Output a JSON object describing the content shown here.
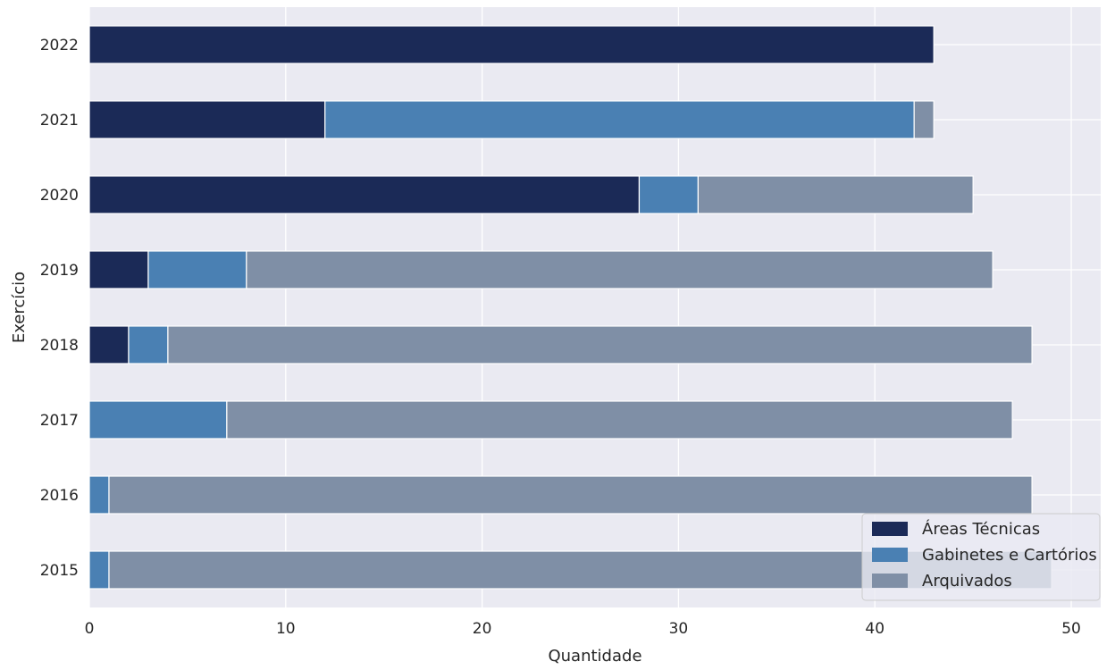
{
  "chart_data": {
    "type": "bar",
    "orientation": "horizontal",
    "stacked": true,
    "xlabel": "Quantidade",
    "ylabel": "Exercício",
    "categories": [
      "2015",
      "2016",
      "2017",
      "2018",
      "2019",
      "2020",
      "2021",
      "2022"
    ],
    "series": [
      {
        "name": "Áreas Técnicas",
        "color": "#1b2a57",
        "values": [
          0,
          0,
          0,
          2,
          3,
          28,
          12,
          43
        ]
      },
      {
        "name": "Gabinetes e Cartórios",
        "color": "#4a80b3",
        "values": [
          1,
          1,
          7,
          2,
          5,
          3,
          30,
          0
        ]
      },
      {
        "name": "Arquivados",
        "color": "#7f8fa6",
        "values": [
          48,
          47,
          40,
          44,
          38,
          14,
          1,
          0
        ]
      }
    ],
    "xlim": [
      0,
      51.5
    ],
    "xticks": [
      0,
      10,
      20,
      30,
      40,
      50
    ],
    "grid": true,
    "legend_position": "lower-right",
    "background": "#eaeaf2"
  }
}
